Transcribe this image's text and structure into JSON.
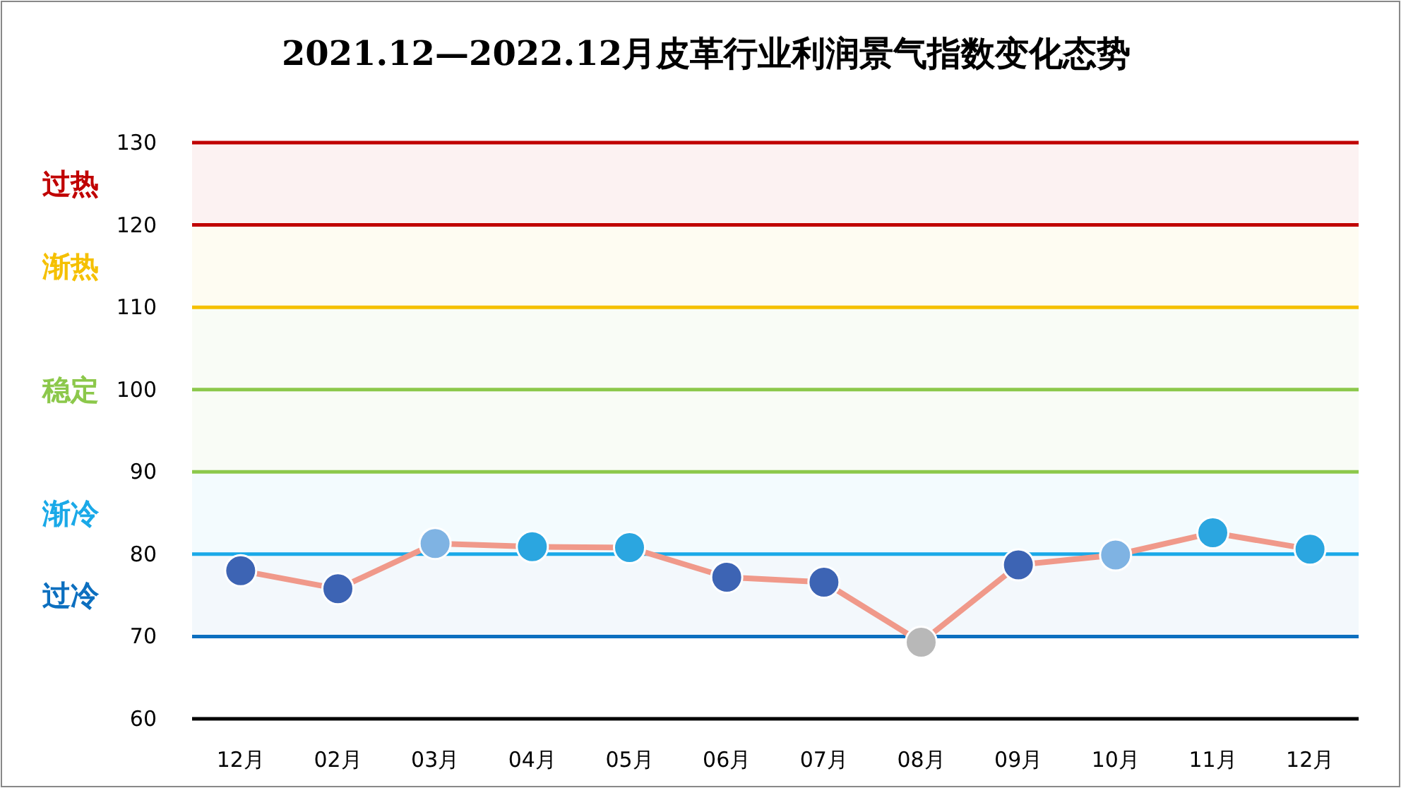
{
  "chart_data": {
    "type": "line",
    "title": "2021.12—2022.12月皮革行业利润景气指数变化态势",
    "categories": [
      "12月",
      "02月",
      "03月",
      "04月",
      "05月",
      "06月",
      "07月",
      "08月",
      "09月",
      "10月",
      "11月",
      "12月"
    ],
    "series": [
      {
        "color": "#f0998a",
        "values": [
          78.0,
          75.8,
          81.3,
          80.9,
          80.8,
          77.2,
          76.6,
          69.3,
          78.7,
          79.9,
          82.6,
          80.6
        ],
        "colors": [
          "#3d64b4",
          "#3d64b4",
          "#7fb3e3",
          "#2ba6e0",
          "#2ba6e0",
          "#3d64b4",
          "#3d64b4",
          "#b8b8b8",
          "#3d64b4",
          "#7fb3e3",
          "#2ba6e0",
          "#2ba6e0"
        ]
      }
    ],
    "ylim": [
      60,
      130
    ],
    "yticks": [
      60,
      70,
      80,
      90,
      100,
      110,
      120,
      130
    ],
    "marker": "circle",
    "ref_lines": [
      {
        "axis": "y",
        "value": 130,
        "color": "#c00000"
      },
      {
        "axis": "y",
        "value": 120,
        "color": "#c00000"
      },
      {
        "axis": "y",
        "value": 110,
        "color": "#f5c000"
      },
      {
        "axis": "y",
        "value": 100,
        "color": "#8cc84b"
      },
      {
        "axis": "y",
        "value": 90,
        "color": "#8cc84b"
      },
      {
        "axis": "y",
        "value": 80,
        "color": "#1aa9e8"
      },
      {
        "axis": "y",
        "value": 70,
        "color": "#0c6fbf"
      }
    ],
    "bands": [
      {
        "axis": "y",
        "from": 120,
        "to": 130,
        "label": "过热",
        "color": "#c00000"
      },
      {
        "axis": "y",
        "from": 110,
        "to": 120,
        "label": "渐热",
        "color": "#f5c000"
      },
      {
        "axis": "y",
        "from": 90,
        "to": 110,
        "label": "稳定",
        "color": "#8cc84b"
      },
      {
        "axis": "y",
        "from": 80,
        "to": 90,
        "label": "渐冷",
        "color": "#1aa9e8"
      },
      {
        "axis": "y",
        "from": 70,
        "to": 80,
        "label": "过冷",
        "color": "#0c6fbf"
      }
    ]
  }
}
